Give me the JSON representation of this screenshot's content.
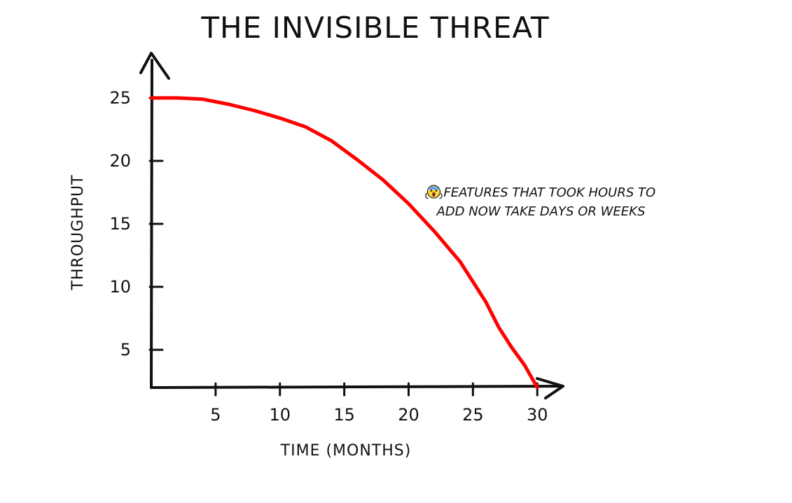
{
  "chart_data": {
    "type": "line",
    "title": "THE INVISIBLE THREAT",
    "xlabel": "TIME (MONTHS)",
    "ylabel": "THROUGHPUT",
    "xlim": [
      0,
      32
    ],
    "ylim": [
      2,
      28
    ],
    "x_ticks": [
      5,
      10,
      15,
      20,
      25,
      30
    ],
    "x_tick_labels": [
      "5",
      "10",
      "15",
      "20",
      "25",
      "30"
    ],
    "y_ticks": [
      5,
      10,
      15,
      20,
      25
    ],
    "y_tick_labels": [
      "5",
      "10",
      "15",
      "20",
      "25"
    ],
    "grid": false,
    "legend": "none",
    "series": [
      {
        "color": "#ff0000",
        "x": [
          0,
          2,
          4,
          6,
          8,
          10,
          12,
          14,
          16,
          18,
          20,
          22,
          24,
          26,
          27,
          28,
          29,
          30
        ],
        "y": [
          25,
          25,
          24.9,
          24.5,
          24,
          23.4,
          22.7,
          21.6,
          20.1,
          18.5,
          16.6,
          14.4,
          12,
          8.8,
          6.8,
          5.2,
          3.8,
          2
        ]
      }
    ],
    "annotations": [
      {
        "icon": "screaming-face-emoji",
        "lines": [
          "FEATURES THAT TOOK HOURS TO",
          "ADD NOW TAKE DAYS OR WEEKS"
        ],
        "x": 22.5,
        "y": 17
      }
    ]
  }
}
